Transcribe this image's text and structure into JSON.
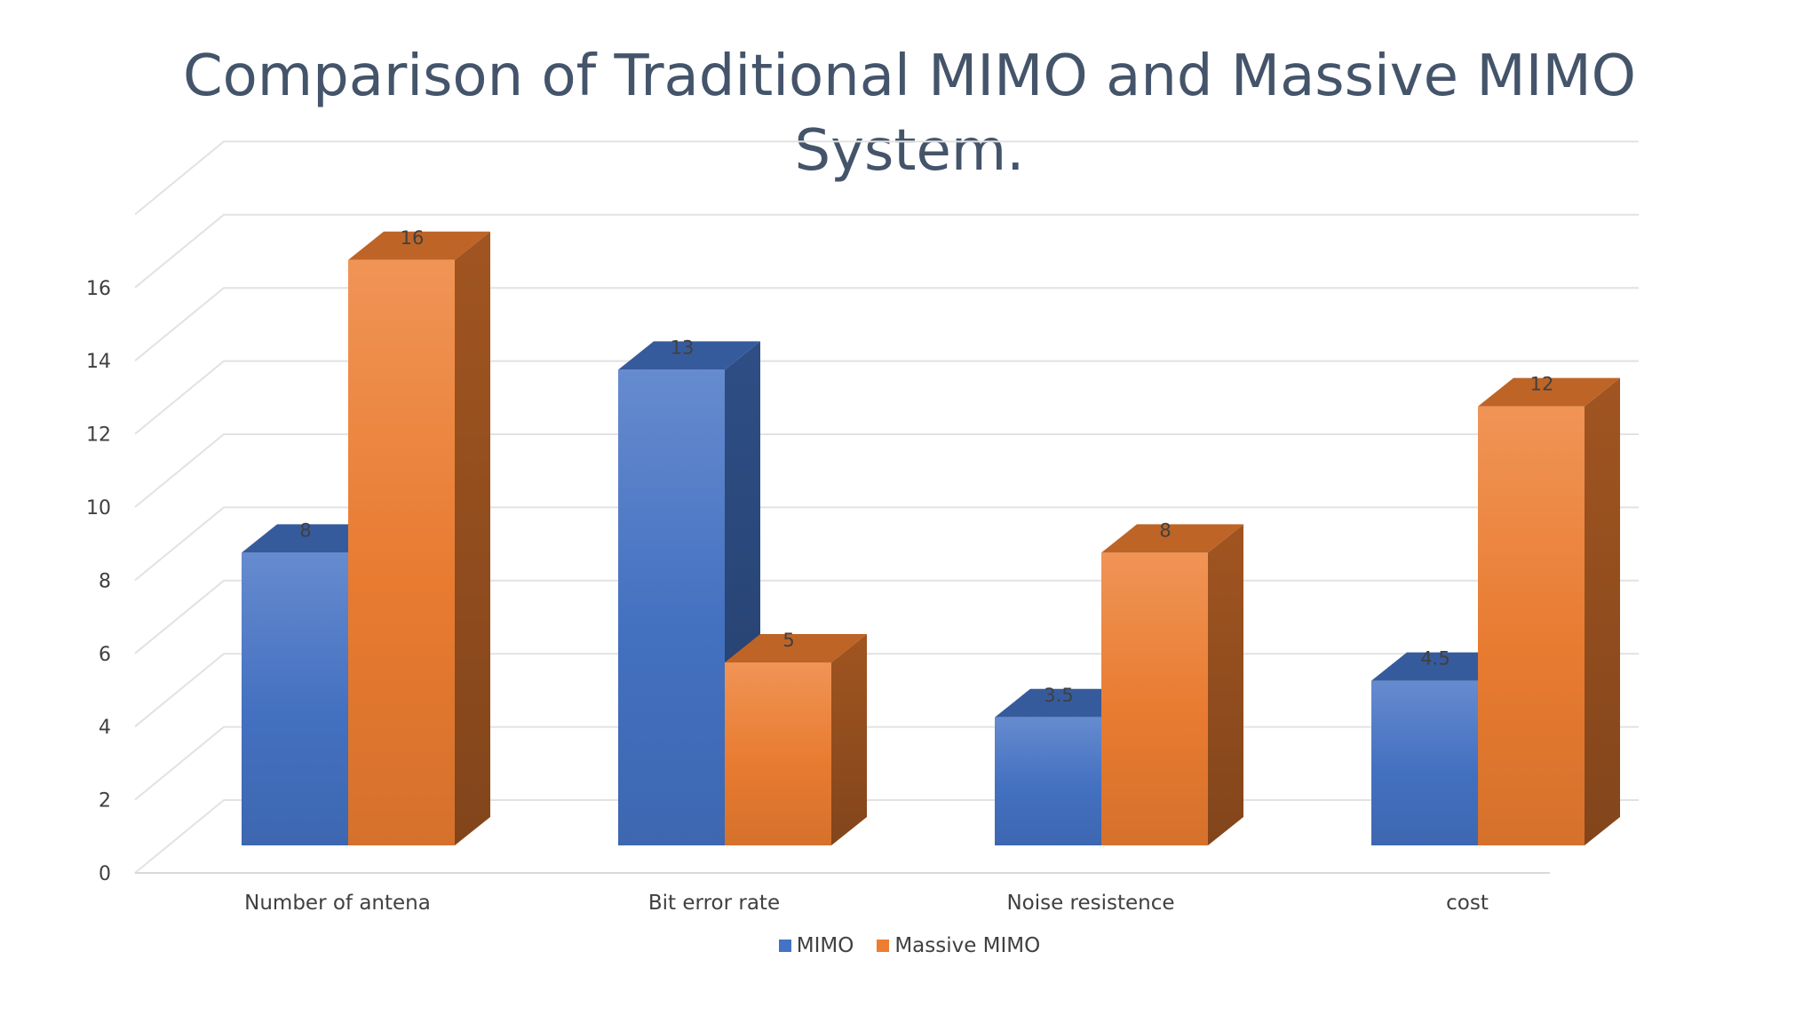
{
  "chart_data": {
    "type": "bar",
    "title_lines": [
      "Comparison of Traditional MIMO and Massive MIMO",
      "System."
    ],
    "categories": [
      "Number of antena",
      "Bit error rate",
      "Noise resistence",
      "cost"
    ],
    "series": [
      {
        "name": "MIMO",
        "values": [
          8,
          13,
          3.5,
          4.5
        ],
        "color": "#4472c4"
      },
      {
        "name": "Massive MIMO",
        "values": [
          16,
          5,
          8,
          12
        ],
        "color": "#ed7d31"
      }
    ],
    "y_ticks": [
      "0",
      "2",
      "4",
      "6",
      "8",
      "10",
      "12",
      "14",
      "16"
    ],
    "ylim": [
      0,
      18
    ],
    "grid": true,
    "legend_position": "bottom",
    "style": "3d-clustered-column"
  }
}
